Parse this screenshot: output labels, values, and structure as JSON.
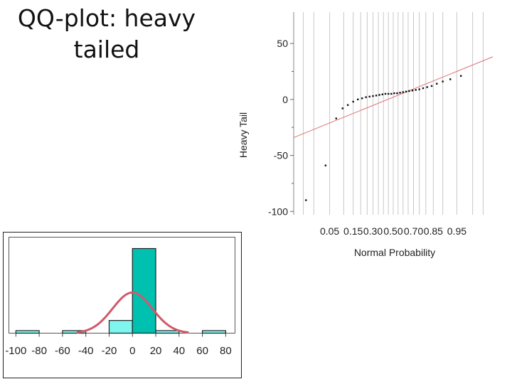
{
  "slide": {
    "title": "QQ-plot: heavy tailed"
  },
  "colors": {
    "qq_grid": "#c8c8c8",
    "qq_line": "#e07070",
    "qq_point": "#111111",
    "hist_bar": "#7ff5f0",
    "hist_bar_tall": "#00c0b0",
    "hist_curve": "#d05a6a"
  },
  "chart_data": [
    {
      "type": "scatter",
      "title": "",
      "xlabel": "Normal Probability",
      "ylabel": "Heavy Tail",
      "ylim": [
        -103,
        78
      ],
      "y_ticks": [
        50,
        0,
        -50,
        -100
      ],
      "y_tick_labels": [
        "50",
        "0",
        "-50",
        "-100"
      ],
      "x_tick_labels": [
        "0.05",
        "0.15",
        "0.30",
        "0.50",
        "0.70",
        "0.85",
        "0.95"
      ],
      "x_tick_probs": [
        0.05,
        0.15,
        0.3,
        0.5,
        0.7,
        0.85,
        0.95
      ],
      "grid_probs": [
        0.01,
        0.02,
        0.05,
        0.1,
        0.15,
        0.2,
        0.25,
        0.3,
        0.35,
        0.4,
        0.45,
        0.5,
        0.55,
        0.6,
        0.65,
        0.7,
        0.75,
        0.8,
        0.85,
        0.9,
        0.95,
        0.98,
        0.99
      ],
      "grid": true,
      "reference_line": {
        "intercept": 2,
        "slope": 14
      },
      "points": [
        [
          0.012,
          -90
        ],
        [
          0.04,
          -59
        ],
        [
          0.07,
          -17
        ],
        [
          0.095,
          -8
        ],
        [
          0.12,
          -5
        ],
        [
          0.15,
          -2
        ],
        [
          0.18,
          0
        ],
        [
          0.21,
          1
        ],
        [
          0.24,
          2
        ],
        [
          0.27,
          2.5
        ],
        [
          0.3,
          3
        ],
        [
          0.33,
          3.5
        ],
        [
          0.36,
          4
        ],
        [
          0.39,
          4.5
        ],
        [
          0.42,
          5
        ],
        [
          0.45,
          5
        ],
        [
          0.48,
          5
        ],
        [
          0.51,
          5.5
        ],
        [
          0.54,
          5.5
        ],
        [
          0.57,
          6
        ],
        [
          0.6,
          6.5
        ],
        [
          0.63,
          7
        ],
        [
          0.66,
          7.5
        ],
        [
          0.69,
          8
        ],
        [
          0.72,
          8.5
        ],
        [
          0.75,
          9
        ],
        [
          0.78,
          10
        ],
        [
          0.81,
          11
        ],
        [
          0.84,
          12
        ],
        [
          0.87,
          14
        ],
        [
          0.9,
          16
        ],
        [
          0.93,
          18
        ],
        [
          0.96,
          21
        ]
      ]
    },
    {
      "type": "bar",
      "title": "",
      "xlabel": "",
      "ylabel": "",
      "x_tick_labels": [
        "-100",
        "-80",
        "-60",
        "-40",
        "-20",
        "0",
        "20",
        "40",
        "60",
        "80"
      ],
      "x_ticks": [
        -100,
        -80,
        -60,
        -40,
        -20,
        0,
        20,
        40,
        60,
        80
      ],
      "xlim": [
        -106,
        88
      ],
      "ylim": [
        0,
        1
      ],
      "bins": [
        {
          "x0": -100,
          "x1": -80,
          "value": 0.03
        },
        {
          "x0": -60,
          "x1": -40,
          "value": 0.03
        },
        {
          "x0": -20,
          "x1": 0,
          "value": 0.15
        },
        {
          "x0": 0,
          "x1": 20,
          "value": 1.0
        },
        {
          "x0": 20,
          "x1": 40,
          "value": 0.03
        },
        {
          "x0": 60,
          "x1": 80,
          "value": 0.03
        }
      ],
      "normal_curve": {
        "mean": 0,
        "sd": 17,
        "peak": 0.48
      }
    }
  ]
}
